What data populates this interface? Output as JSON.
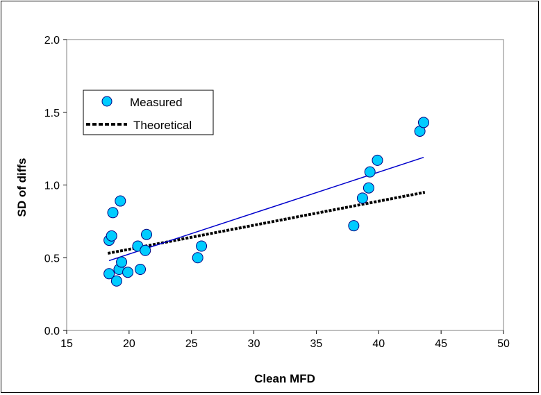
{
  "chart_data": {
    "type": "scatter",
    "title": "",
    "xlabel": "Clean MFD",
    "ylabel": "SD of diffs",
    "xlim": [
      15,
      50
    ],
    "ylim": [
      0.0,
      2.0
    ],
    "x_ticks": [
      15,
      20,
      25,
      30,
      35,
      40,
      45,
      50
    ],
    "y_ticks": [
      0.0,
      0.5,
      1.0,
      1.5,
      2.0
    ],
    "x_tick_labels": [
      "15",
      "20",
      "25",
      "30",
      "35",
      "40",
      "45",
      "50"
    ],
    "y_tick_labels": [
      "0.0",
      "0.5",
      "1.0",
      "1.5",
      "2.0"
    ],
    "grid": true,
    "legend_position": "top-left",
    "colors": {
      "marker_fill": "#00ccff",
      "marker_edge": "#000080",
      "trend_line": "#0000cc",
      "theoretical_line": "#000000",
      "plot_background": "#ffffff",
      "grid": "#808080"
    },
    "series": [
      {
        "name": "Measured",
        "kind": "markers",
        "points": [
          {
            "x": 18.4,
            "y": 0.39
          },
          {
            "x": 18.4,
            "y": 0.62
          },
          {
            "x": 18.6,
            "y": 0.65
          },
          {
            "x": 18.7,
            "y": 0.81
          },
          {
            "x": 19.0,
            "y": 0.34
          },
          {
            "x": 19.2,
            "y": 0.42
          },
          {
            "x": 19.3,
            "y": 0.89
          },
          {
            "x": 19.4,
            "y": 0.47
          },
          {
            "x": 19.9,
            "y": 0.4
          },
          {
            "x": 20.7,
            "y": 0.58
          },
          {
            "x": 20.9,
            "y": 0.42
          },
          {
            "x": 21.3,
            "y": 0.55
          },
          {
            "x": 21.4,
            "y": 0.66
          },
          {
            "x": 25.5,
            "y": 0.5
          },
          {
            "x": 25.8,
            "y": 0.58
          },
          {
            "x": 38.0,
            "y": 0.72
          },
          {
            "x": 38.7,
            "y": 0.91
          },
          {
            "x": 39.2,
            "y": 0.98
          },
          {
            "x": 39.3,
            "y": 1.09
          },
          {
            "x": 39.9,
            "y": 1.17
          },
          {
            "x": 43.3,
            "y": 1.37
          },
          {
            "x": 43.6,
            "y": 1.43
          }
        ]
      },
      {
        "name": "Theoretical",
        "kind": "dashed-line",
        "points": [
          {
            "x": 18.3,
            "y": 0.53
          },
          {
            "x": 43.7,
            "y": 0.95
          }
        ]
      },
      {
        "kind": "trend-line",
        "points": [
          {
            "x": 18.4,
            "y": 0.48
          },
          {
            "x": 43.6,
            "y": 1.19
          }
        ]
      }
    ]
  }
}
